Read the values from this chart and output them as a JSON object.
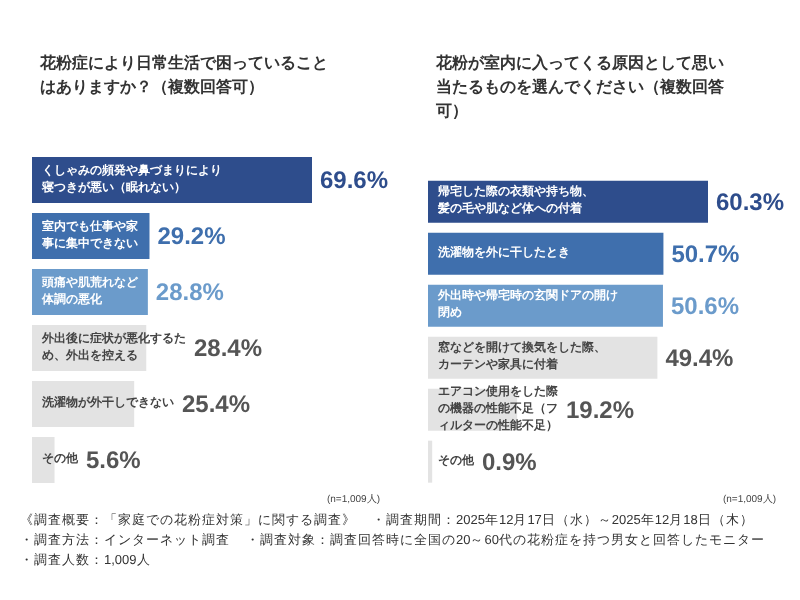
{
  "chart_data": [
    {
      "type": "bar",
      "orientation": "horizontal",
      "title": "花粉症により日常生活で困っていることはありますか？（複数回答可）",
      "categories": [
        "くしゃみの頻発や鼻づまりにより寝つきが悪い（眠れない）",
        "室内でも仕事や家事に集中できない",
        "頭痛や肌荒れなど体調の悪化",
        "外出後に症状が悪化するため、外出を控える",
        "洗濯物が外干しできない",
        "その他"
      ],
      "values": [
        69.6,
        29.2,
        28.8,
        28.4,
        25.4,
        5.6
      ],
      "colors": [
        "#2e4d8c",
        "#3f6fad",
        "#6b9bcb",
        "#e3e3e3",
        "#e3e3e3",
        "#e3e3e3"
      ],
      "value_labels": [
        "69.6%",
        "29.2%",
        "28.8%",
        "28.4%",
        "25.4%",
        "5.6%"
      ],
      "annotations": [
        "(n=1,009人)"
      ]
    },
    {
      "type": "bar",
      "orientation": "horizontal",
      "title": "花粉が室内に入ってくる原因として思い当たるものを選んでください（複数回答可）",
      "categories": [
        "帰宅した際の衣類や持ち物、髪の毛や肌など体への付着",
        "洗濯物を外に干したとき",
        "外出時や帰宅時の玄関ドアの開け閉め",
        "窓などを開けて換気をした際、カーテンや家具に付着",
        "エアコン使用をした際の機器の性能不足（フィルターの性能不足）",
        "その他"
      ],
      "values": [
        60.3,
        50.7,
        50.6,
        49.4,
        19.2,
        0.9
      ],
      "colors": [
        "#2e4d8c",
        "#3f6fad",
        "#6b9bcb",
        "#e3e3e3",
        "#e3e3e3",
        "#e3e3e3"
      ],
      "value_labels": [
        "60.3%",
        "50.7%",
        "50.6%",
        "49.4%",
        "19.2%",
        "0.9%"
      ],
      "annotations": [
        "(n=1,009人)"
      ]
    },
    {
      "type": "other",
      "annotations": [
        "《調査概要：「家庭での花粉症対策」に関する調査》",
        "・調査期間：2025年12月17日（水）～2025年12月18日（木）",
        "・調査方法：インターネット調査",
        "・調査対象：調査回答時に全国の20～60代の花粉症を持つ男女と回答したモニター",
        "・調査人数：1,009人"
      ]
    }
  ]
}
